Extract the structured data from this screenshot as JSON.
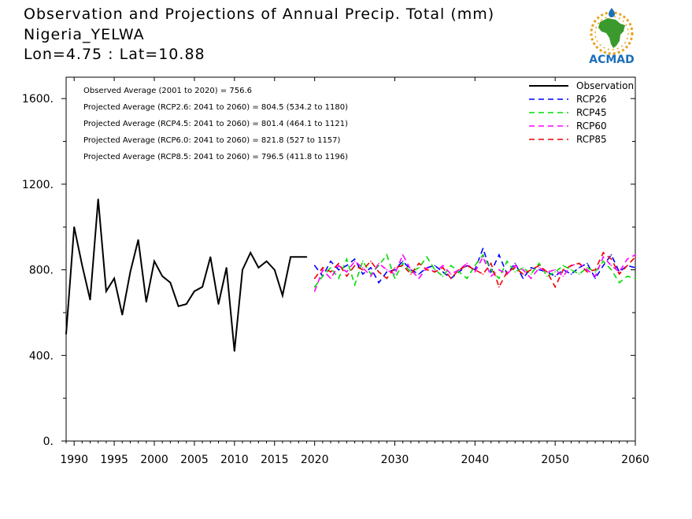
{
  "header": {
    "line1": "Observation and Projections of Annual Precip. Total (mm)",
    "line2": "Nigeria_YELWA",
    "line3": "Lon=4.75 : Lat=10.88"
  },
  "logo": {
    "text": "ACMAD",
    "colors": {
      "africa": "#3a9a2e",
      "ring": "#e8a21c",
      "text": "#1b6fb8"
    }
  },
  "chart_data": {
    "type": "line",
    "xlim": [
      1989,
      2060
    ],
    "ylim": [
      0,
      1700
    ],
    "x_ticks": [
      1990,
      1995,
      2000,
      2005,
      2010,
      2015,
      2020,
      2030,
      2040,
      2050,
      2060
    ],
    "x_tick_labels": [
      "1990",
      "1995",
      "2000",
      "2005",
      "2010",
      "2015",
      "2020",
      "2030",
      "2040",
      "2050",
      "2060"
    ],
    "y_ticks": [
      0,
      400,
      800,
      1200,
      1600
    ],
    "y_tick_labels": [
      "0.",
      "400.",
      "800.",
      "1200.",
      "1600."
    ],
    "grid": false,
    "legend_position": "top-right",
    "annotations": [
      "Observed Average (2001 to 2020) = 756.6",
      "Projected Average (RCP2.6: 2041 to 2060) = 804.5 (534.2 to 1180)",
      "Projected Average (RCP4.5: 2041 to 2060) = 801.4 (464.1 to 1121)",
      "Projected Average (RCP6.0: 2041 to 2060) = 821.8 (527 to 1157)",
      "Projected Average (RCP8.5: 2041 to 2060) = 796.5 (411.8 to 1196)"
    ],
    "series": [
      {
        "name": "Observation",
        "color": "#000000",
        "style": "solid",
        "x": [
          1989,
          1990,
          1991,
          1992,
          1993,
          1994,
          1995,
          1996,
          1997,
          1998,
          1999,
          2000,
          2001,
          2002,
          2003,
          2004,
          2005,
          2006,
          2007,
          2008,
          2009,
          2010,
          2011,
          2012,
          2013,
          2014,
          2015,
          2016,
          2017,
          2018,
          2019
        ],
        "values": [
          500,
          1000,
          820,
          660,
          1130,
          700,
          760,
          590,
          790,
          940,
          650,
          840,
          770,
          740,
          630,
          640,
          700,
          720,
          860,
          640,
          810,
          420,
          800,
          880,
          810,
          840,
          800,
          680,
          860,
          860,
          860
        ]
      },
      {
        "name": "RCP26",
        "color": "#0000ff",
        "style": "dashed",
        "x": [
          2020,
          2021,
          2022,
          2023,
          2024,
          2025,
          2026,
          2027,
          2028,
          2029,
          2030,
          2031,
          2032,
          2033,
          2034,
          2035,
          2036,
          2037,
          2038,
          2039,
          2040,
          2041,
          2042,
          2043,
          2044,
          2045,
          2046,
          2047,
          2048,
          2049,
          2050,
          2051,
          2052,
          2053,
          2054,
          2055,
          2056,
          2057,
          2058,
          2059,
          2060
        ],
        "values": [
          820,
          770,
          840,
          800,
          820,
          850,
          780,
          810,
          740,
          790,
          800,
          840,
          800,
          780,
          810,
          820,
          790,
          760,
          790,
          820,
          800,
          900,
          790,
          870,
          780,
          830,
          760,
          810,
          800,
          790,
          770,
          800,
          780,
          810,
          830,
          760,
          820,
          870,
          790,
          820,
          810
        ]
      },
      {
        "name": "RCP45",
        "color": "#00dd00",
        "style": "dashed",
        "x": [
          2020,
          2021,
          2022,
          2023,
          2024,
          2025,
          2026,
          2027,
          2028,
          2029,
          2030,
          2031,
          2032,
          2033,
          2034,
          2035,
          2036,
          2037,
          2038,
          2039,
          2040,
          2041,
          2042,
          2043,
          2044,
          2045,
          2046,
          2047,
          2048,
          2049,
          2050,
          2051,
          2052,
          2053,
          2054,
          2055,
          2056,
          2057,
          2058,
          2059,
          2060
        ],
        "values": [
          720,
          770,
          810,
          760,
          850,
          730,
          840,
          780,
          820,
          870,
          760,
          830,
          790,
          810,
          860,
          800,
          770,
          820,
          790,
          760,
          820,
          870,
          800,
          760,
          840,
          790,
          810,
          780,
          830,
          770,
          790,
          820,
          800,
          780,
          810,
          790,
          840,
          800,
          740,
          770,
          760
        ]
      },
      {
        "name": "RCP60",
        "color": "#ff00ff",
        "style": "dashed",
        "x": [
          2020,
          2021,
          2022,
          2023,
          2024,
          2025,
          2026,
          2027,
          2028,
          2029,
          2030,
          2031,
          2032,
          2033,
          2034,
          2035,
          2036,
          2037,
          2038,
          2039,
          2040,
          2041,
          2042,
          2043,
          2044,
          2045,
          2046,
          2047,
          2048,
          2049,
          2050,
          2051,
          2052,
          2053,
          2054,
          2055,
          2056,
          2057,
          2058,
          2059,
          2060
        ],
        "values": [
          700,
          800,
          760,
          820,
          790,
          840,
          810,
          770,
          830,
          800,
          780,
          870,
          800,
          760,
          810,
          790,
          820,
          780,
          800,
          830,
          790,
          860,
          770,
          800,
          780,
          820,
          800,
          760,
          810,
          790,
          800,
          770,
          820,
          830,
          800,
          770,
          860,
          820,
          790,
          850,
          870
        ]
      },
      {
        "name": "RCP85",
        "color": "#ee0000",
        "style": "dashed",
        "x": [
          2020,
          2021,
          2022,
          2023,
          2024,
          2025,
          2026,
          2027,
          2028,
          2029,
          2030,
          2031,
          2032,
          2033,
          2034,
          2035,
          2036,
          2037,
          2038,
          2039,
          2040,
          2041,
          2042,
          2043,
          2044,
          2045,
          2046,
          2047,
          2048,
          2049,
          2050,
          2051,
          2052,
          2053,
          2054,
          2055,
          2056,
          2057,
          2058,
          2059,
          2060
        ],
        "values": [
          760,
          810,
          790,
          830,
          770,
          820,
          800,
          840,
          790,
          760,
          810,
          820,
          780,
          830,
          800,
          790,
          810,
          760,
          800,
          820,
          800,
          780,
          830,
          720,
          790,
          810,
          780,
          800,
          820,
          790,
          720,
          800,
          820,
          830,
          790,
          800,
          880,
          850,
          780,
          820,
          860
        ]
      }
    ]
  }
}
